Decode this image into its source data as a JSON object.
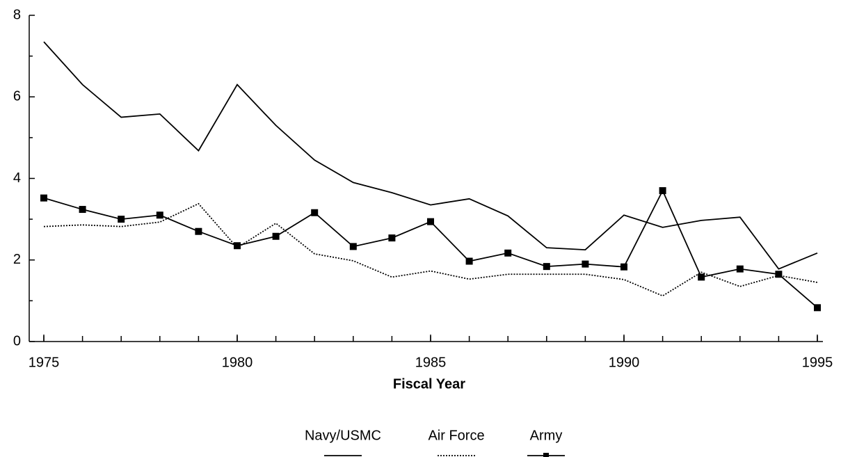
{
  "chart_data": {
    "type": "line",
    "xlabel": "Fiscal Year",
    "x": [
      1975,
      1976,
      1977,
      1978,
      1979,
      1980,
      1981,
      1982,
      1983,
      1984,
      1985,
      1986,
      1987,
      1988,
      1989,
      1990,
      1991,
      1992,
      1993,
      1994,
      1995
    ],
    "series": [
      {
        "name": "Navy/USMC",
        "color": "#000000",
        "dash": "solid",
        "marker": "none",
        "values": [
          7.35,
          6.3,
          5.5,
          5.58,
          4.68,
          6.3,
          5.3,
          4.45,
          3.9,
          3.65,
          3.35,
          3.5,
          3.08,
          2.3,
          2.25,
          3.1,
          2.8,
          2.97,
          3.05,
          1.78,
          2.17
        ]
      },
      {
        "name": "Air Force",
        "color": "#000000",
        "dash": "dotted",
        "marker": "none",
        "values": [
          2.82,
          2.86,
          2.82,
          2.93,
          3.38,
          2.3,
          2.9,
          2.15,
          1.98,
          1.58,
          1.73,
          1.53,
          1.65,
          1.65,
          1.65,
          1.52,
          1.12,
          1.7,
          1.35,
          1.62,
          1.45
        ]
      },
      {
        "name": "Army",
        "color": "#000000",
        "dash": "solid",
        "marker": "square",
        "values": [
          3.52,
          3.24,
          3.0,
          3.1,
          2.7,
          2.35,
          2.58,
          3.16,
          2.33,
          2.54,
          2.94,
          1.97,
          2.17,
          1.84,
          1.9,
          1.83,
          3.7,
          1.58,
          1.78,
          1.65,
          0.83
        ]
      }
    ],
    "xlim": [
      1975,
      1995
    ],
    "xticks": [
      1975,
      1980,
      1985,
      1990,
      1995
    ],
    "ylim": [
      0,
      8
    ],
    "yticks": [
      0,
      2,
      4,
      6,
      8
    ],
    "yminorticks": [
      1,
      3,
      5,
      7
    ],
    "grid": false,
    "legend": "bottom"
  }
}
